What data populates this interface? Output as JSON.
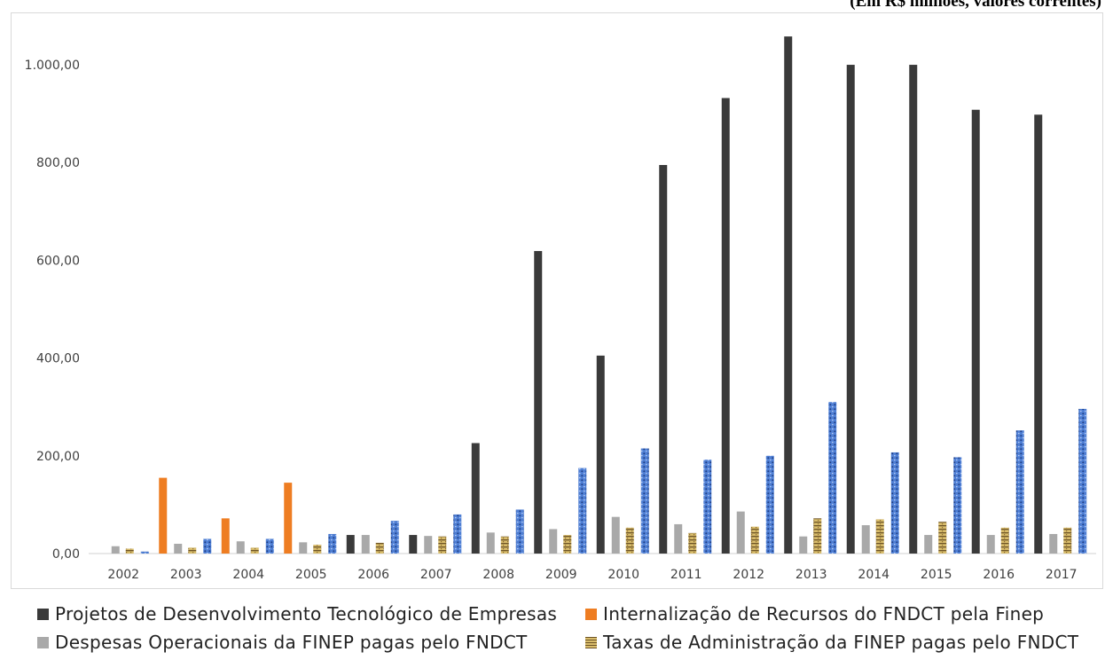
{
  "unit_note": "(Em R$ milhões, valores correntes)",
  "chart_data": {
    "type": "bar",
    "categories": [
      "2002",
      "2003",
      "2004",
      "2005",
      "2006",
      "2007",
      "2008",
      "2009",
      "2010",
      "2011",
      "2012",
      "2013",
      "2014",
      "2015",
      "2016",
      "2017"
    ],
    "ylim": [
      0,
      1060
    ],
    "yticks": [
      0,
      200,
      400,
      600,
      800,
      1000
    ],
    "ytick_labels": [
      "0,00",
      "200,00",
      "400,00",
      "600,00",
      "800,00",
      "1.000,00"
    ],
    "grid": false,
    "legend_position": "bottom",
    "series": [
      {
        "name": "Projetos de Desenvolvimento Tecnológico de Empresas",
        "color": "#3a3a3a",
        "values": [
          0,
          0,
          0,
          0,
          38,
          38,
          226,
          619,
          405,
          795,
          932,
          1058,
          1000,
          1000,
          908,
          898
        ]
      },
      {
        "name": "Internalização de Recursos do FNDCT pela Finep",
        "color": "#ee7d22",
        "values": [
          0,
          155,
          72,
          145,
          0,
          0,
          0,
          0,
          0,
          0,
          0,
          0,
          0,
          0,
          0,
          0
        ]
      },
      {
        "name": "Despesas Operacionais da FINEP pagas pelo FNDCT",
        "color": "#a9a9a9",
        "values": [
          15,
          20,
          25,
          23,
          38,
          36,
          43,
          50,
          75,
          60,
          86,
          35,
          58,
          38,
          38,
          40
        ]
      },
      {
        "name": "Taxas de Administração da FINEP pagas pelo FNDCT",
        "color": "#c9a95c",
        "values": [
          10,
          12,
          12,
          18,
          22,
          35,
          35,
          38,
          53,
          42,
          55,
          72,
          70,
          65,
          53,
          53
        ]
      },
      {
        "name": "",
        "color": "#4f7fd4",
        "values": [
          4,
          30,
          30,
          40,
          67,
          80,
          90,
          175,
          215,
          192,
          200,
          310,
          207,
          197,
          252,
          296
        ]
      }
    ]
  }
}
